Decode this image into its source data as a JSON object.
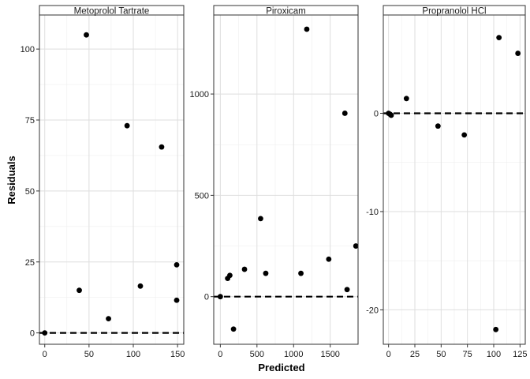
{
  "chart_data": {
    "type": "scatter",
    "xlabel": "Predicted",
    "ylabel": "Residuals",
    "reference_line": 0,
    "colors": {
      "point": "#000000",
      "grid": "#dedede",
      "frame": "#333333",
      "strip_bg": "#ffffff"
    },
    "panels": [
      {
        "title": "Metoprolol Tartrate",
        "xlim": [
          -6,
          157
        ],
        "ylim": [
          -4,
          112
        ],
        "xticks": [
          0,
          50,
          100,
          150
        ],
        "yticks": [
          0,
          25,
          50,
          75,
          100
        ],
        "points": [
          {
            "x": 0,
            "y": 0
          },
          {
            "x": 39,
            "y": 15
          },
          {
            "x": 47,
            "y": 105
          },
          {
            "x": 72,
            "y": 5
          },
          {
            "x": 93,
            "y": 73
          },
          {
            "x": 108,
            "y": 16.5
          },
          {
            "x": 132,
            "y": 65.5
          },
          {
            "x": 149,
            "y": 24
          },
          {
            "x": 149,
            "y": 11.5
          }
        ]
      },
      {
        "title": "Piroxicam",
        "xlim": [
          -90,
          1880
        ],
        "ylim": [
          -235,
          1390
        ],
        "xticks": [
          0,
          500,
          1000,
          1500
        ],
        "yticks": [
          0,
          500,
          1000
        ],
        "points": [
          {
            "x": 0,
            "y": 0
          },
          {
            "x": 100,
            "y": 90
          },
          {
            "x": 130,
            "y": 105
          },
          {
            "x": 180,
            "y": -160
          },
          {
            "x": 330,
            "y": 135
          },
          {
            "x": 550,
            "y": 385
          },
          {
            "x": 620,
            "y": 115
          },
          {
            "x": 1100,
            "y": 115
          },
          {
            "x": 1180,
            "y": 1320
          },
          {
            "x": 1480,
            "y": 185
          },
          {
            "x": 1700,
            "y": 905
          },
          {
            "x": 1730,
            "y": 35
          },
          {
            "x": 1850,
            "y": 250
          }
        ]
      },
      {
        "title": "Propranolol HCl",
        "xlim": [
          -5,
          130
        ],
        "ylim": [
          -23.5,
          10
        ],
        "xticks": [
          0,
          25,
          50,
          75,
          100,
          125
        ],
        "yticks": [
          -20,
          -10,
          0
        ],
        "points": [
          {
            "x": 0,
            "y": 0
          },
          {
            "x": 1.5,
            "y": -0.1
          },
          {
            "x": 2.5,
            "y": -0.2
          },
          {
            "x": 17,
            "y": 1.5
          },
          {
            "x": 47,
            "y": -1.3
          },
          {
            "x": 72,
            "y": -2.2
          },
          {
            "x": 102,
            "y": -22
          },
          {
            "x": 105,
            "y": 7.7
          },
          {
            "x": 123,
            "y": 6.1
          }
        ]
      }
    ]
  }
}
